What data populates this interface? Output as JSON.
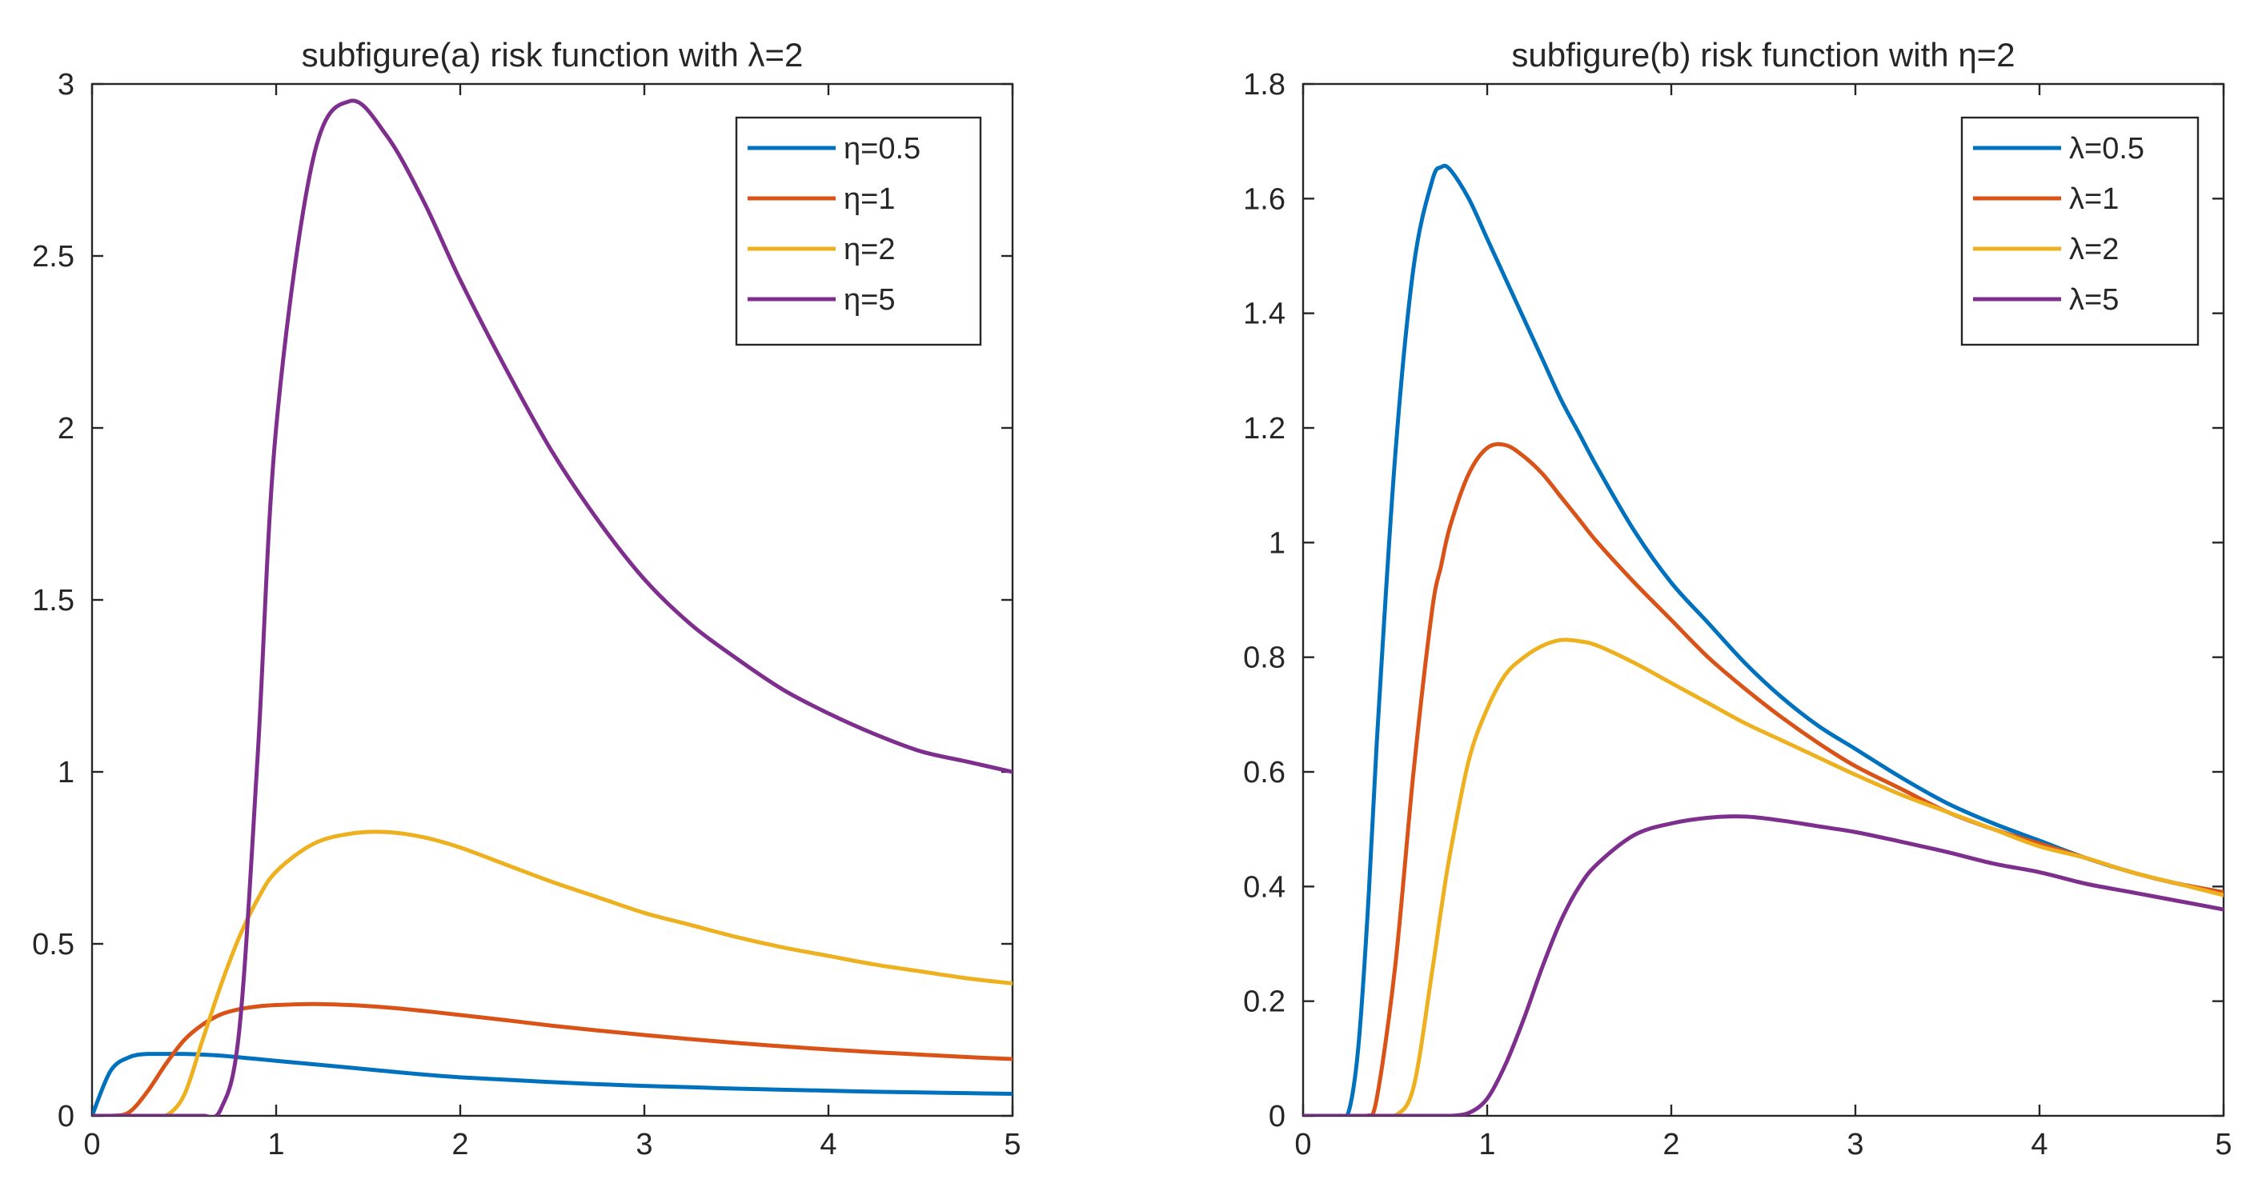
{
  "chart_data": [
    {
      "type": "line",
      "title": "subfigure(a) risk function with λ=2",
      "xlabel": "",
      "ylabel": "",
      "xlim": [
        0,
        5
      ],
      "ylim": [
        0,
        3
      ],
      "xticks": [
        0,
        1,
        2,
        3,
        4,
        5
      ],
      "xtick_labels": [
        "0",
        "1",
        "2",
        "3",
        "4",
        "5"
      ],
      "yticks": [
        0,
        0.5,
        1,
        1.5,
        2,
        2.5,
        3
      ],
      "ytick_labels": [
        "0",
        "0.5",
        "1",
        "1.5",
        "2",
        "2.5",
        "3"
      ],
      "grid": false,
      "legend_position": "top-right",
      "x": [
        0,
        0.1,
        0.2,
        0.3,
        0.4,
        0.5,
        0.6,
        0.7,
        0.8,
        0.9,
        1,
        1.2,
        1.4,
        1.6,
        1.8,
        2,
        2.25,
        2.5,
        2.75,
        3,
        3.25,
        3.5,
        3.75,
        4,
        4.25,
        4.5,
        4.75,
        5
      ],
      "series": [
        {
          "name": "η=0.5",
          "color": "#0072BD",
          "values": [
            0,
            0.13,
            0.17,
            0.18,
            0.18,
            0.18,
            0.178,
            0.175,
            0.17,
            0.165,
            0.16,
            0.15,
            0.14,
            0.13,
            0.12,
            0.112,
            0.105,
            0.098,
            0.092,
            0.087,
            0.083,
            0.079,
            0.076,
            0.073,
            0.07,
            0.068,
            0.066,
            0.064
          ]
        },
        {
          "name": "η=1",
          "color": "#D95319",
          "values": [
            0,
            0,
            0.01,
            0.07,
            0.15,
            0.22,
            0.265,
            0.295,
            0.31,
            0.318,
            0.322,
            0.325,
            0.322,
            0.315,
            0.305,
            0.293,
            0.278,
            0.262,
            0.248,
            0.235,
            0.223,
            0.212,
            0.202,
            0.193,
            0.185,
            0.178,
            0.171,
            0.165
          ]
        },
        {
          "name": "η=2",
          "color": "#EDB120",
          "values": [
            0,
            0,
            0,
            0,
            0,
            0.06,
            0.22,
            0.38,
            0.52,
            0.63,
            0.71,
            0.79,
            0.82,
            0.825,
            0.81,
            0.78,
            0.73,
            0.68,
            0.635,
            0.59,
            0.555,
            0.52,
            0.49,
            0.465,
            0.44,
            0.42,
            0.4,
            0.385
          ]
        },
        {
          "name": "η=5",
          "color": "#7E2F8E",
          "values": [
            0,
            0,
            0,
            0,
            0,
            0,
            0,
            0.02,
            0.25,
            1.05,
            2.0,
            2.78,
            2.95,
            2.85,
            2.66,
            2.43,
            2.17,
            1.93,
            1.73,
            1.56,
            1.43,
            1.33,
            1.24,
            1.17,
            1.11,
            1.06,
            1.03,
            1.0
          ]
        }
      ]
    },
    {
      "type": "line",
      "title": "subfigure(b) risk function with η=2",
      "xlabel": "",
      "ylabel": "",
      "xlim": [
        0,
        5
      ],
      "ylim": [
        0,
        1.8
      ],
      "xticks": [
        0,
        1,
        2,
        3,
        4,
        5
      ],
      "xtick_labels": [
        "0",
        "1",
        "2",
        "3",
        "4",
        "5"
      ],
      "yticks": [
        0,
        0.2,
        0.4,
        0.6,
        0.8,
        1,
        1.2,
        1.4,
        1.6,
        1.8
      ],
      "ytick_labels": [
        "0",
        "0.2",
        "0.4",
        "0.6",
        "0.8",
        "1",
        "1.2",
        "1.4",
        "1.6",
        "1.8"
      ],
      "grid": false,
      "legend_position": "top-right",
      "x": [
        0,
        0.1,
        0.2,
        0.25,
        0.3,
        0.35,
        0.4,
        0.5,
        0.6,
        0.7,
        0.75,
        0.8,
        0.9,
        1,
        1.1,
        1.2,
        1.3,
        1.4,
        1.5,
        1.6,
        1.8,
        2,
        2.2,
        2.4,
        2.6,
        2.8,
        3,
        3.25,
        3.5,
        3.75,
        4,
        4.25,
        4.5,
        4.75,
        5
      ],
      "series": [
        {
          "name": "λ=0.5",
          "color": "#0072BD",
          "values": [
            0,
            0,
            0,
            0.01,
            0.12,
            0.35,
            0.65,
            1.15,
            1.48,
            1.63,
            1.655,
            1.65,
            1.6,
            1.53,
            1.46,
            1.39,
            1.32,
            1.25,
            1.19,
            1.13,
            1.02,
            0.93,
            0.86,
            0.79,
            0.73,
            0.68,
            0.64,
            0.59,
            0.545,
            0.51,
            0.48,
            0.45,
            0.425,
            0.405,
            0.39
          ]
        },
        {
          "name": "λ=1",
          "color": "#D95319",
          "values": [
            0,
            0,
            0,
            0,
            0,
            0,
            0.03,
            0.26,
            0.6,
            0.88,
            0.96,
            1.03,
            1.12,
            1.165,
            1.17,
            1.15,
            1.12,
            1.08,
            1.04,
            1.0,
            0.93,
            0.865,
            0.8,
            0.745,
            0.695,
            0.65,
            0.61,
            0.57,
            0.53,
            0.5,
            0.475,
            0.45,
            0.425,
            0.405,
            0.39
          ]
        },
        {
          "name": "λ=2",
          "color": "#EDB120",
          "values": [
            0,
            0,
            0,
            0,
            0,
            0,
            0,
            0,
            0.05,
            0.25,
            0.36,
            0.46,
            0.62,
            0.71,
            0.77,
            0.8,
            0.82,
            0.83,
            0.828,
            0.82,
            0.79,
            0.755,
            0.72,
            0.685,
            0.655,
            0.625,
            0.595,
            0.56,
            0.53,
            0.5,
            0.47,
            0.45,
            0.425,
            0.405,
            0.385
          ]
        },
        {
          "name": "λ=5",
          "color": "#7E2F8E",
          "values": [
            0,
            0,
            0,
            0,
            0,
            0,
            0,
            0,
            0,
            0,
            0,
            0,
            0.005,
            0.03,
            0.09,
            0.17,
            0.26,
            0.34,
            0.4,
            0.44,
            0.49,
            0.51,
            0.52,
            0.522,
            0.515,
            0.505,
            0.495,
            0.478,
            0.46,
            0.44,
            0.425,
            0.405,
            0.39,
            0.375,
            0.36
          ]
        }
      ]
    }
  ]
}
